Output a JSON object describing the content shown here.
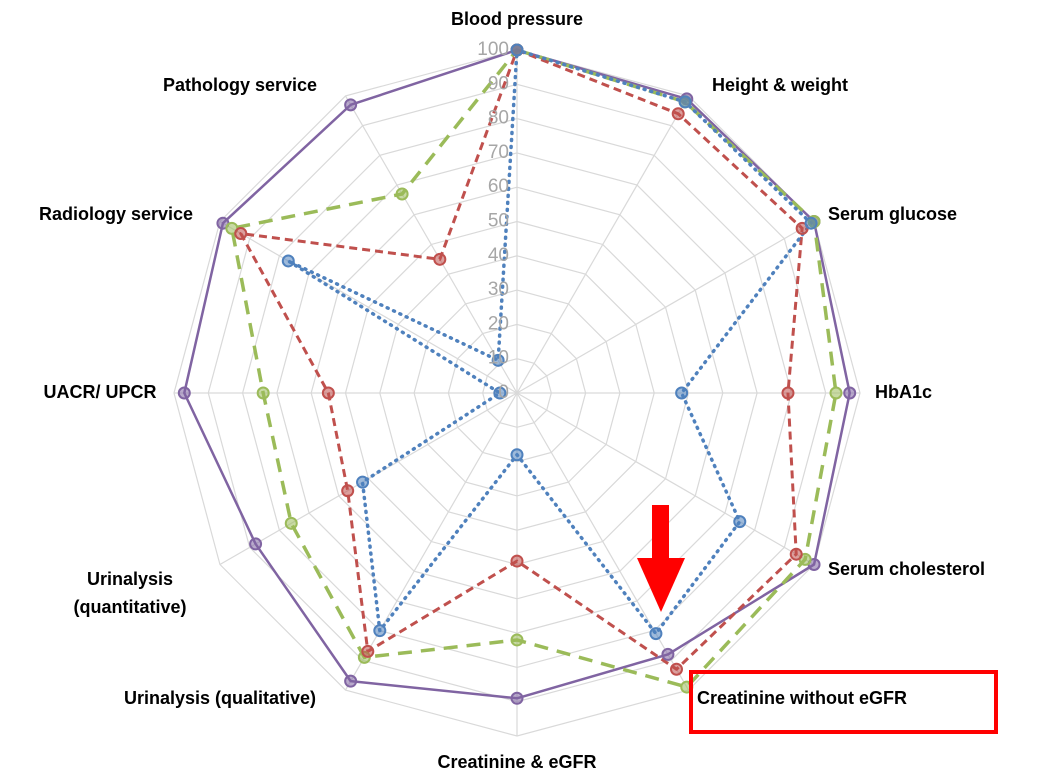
{
  "chart_data": {
    "type": "radar",
    "categories": [
      "Blood pressure",
      "Height & weight",
      "Serum glucose",
      "HbA1c",
      "Serum cholesterol",
      "Creatinine without eGFR",
      "Creatinine & eGFR",
      "Urinalysis (qualitative)",
      "Urinalysis (quantitative)",
      "UACR/ UPCR",
      "Radiology service",
      "Pathology service"
    ],
    "rlim": [
      0,
      100
    ],
    "rticks": [
      0,
      10,
      20,
      30,
      40,
      50,
      60,
      70,
      80,
      90,
      100
    ],
    "grid": true,
    "series": [
      {
        "color": "#8064a2",
        "values": [
          100,
          99,
          100,
          97,
          100,
          88,
          89,
          97,
          88,
          97,
          99,
          97
        ]
      },
      {
        "color": "#9bbb59",
        "values": [
          100,
          98,
          100,
          93,
          97,
          99,
          72,
          89,
          76,
          74,
          96,
          67
        ]
      },
      {
        "color": "#c0504d",
        "values": [
          100,
          94,
          96,
          79,
          94,
          93,
          49,
          87,
          57,
          55,
          93,
          45
        ]
      },
      {
        "color": "#4f81bd",
        "values": [
          100,
          98,
          99,
          48,
          75,
          81,
          18,
          80,
          52,
          5,
          77,
          11
        ]
      }
    ]
  }
}
